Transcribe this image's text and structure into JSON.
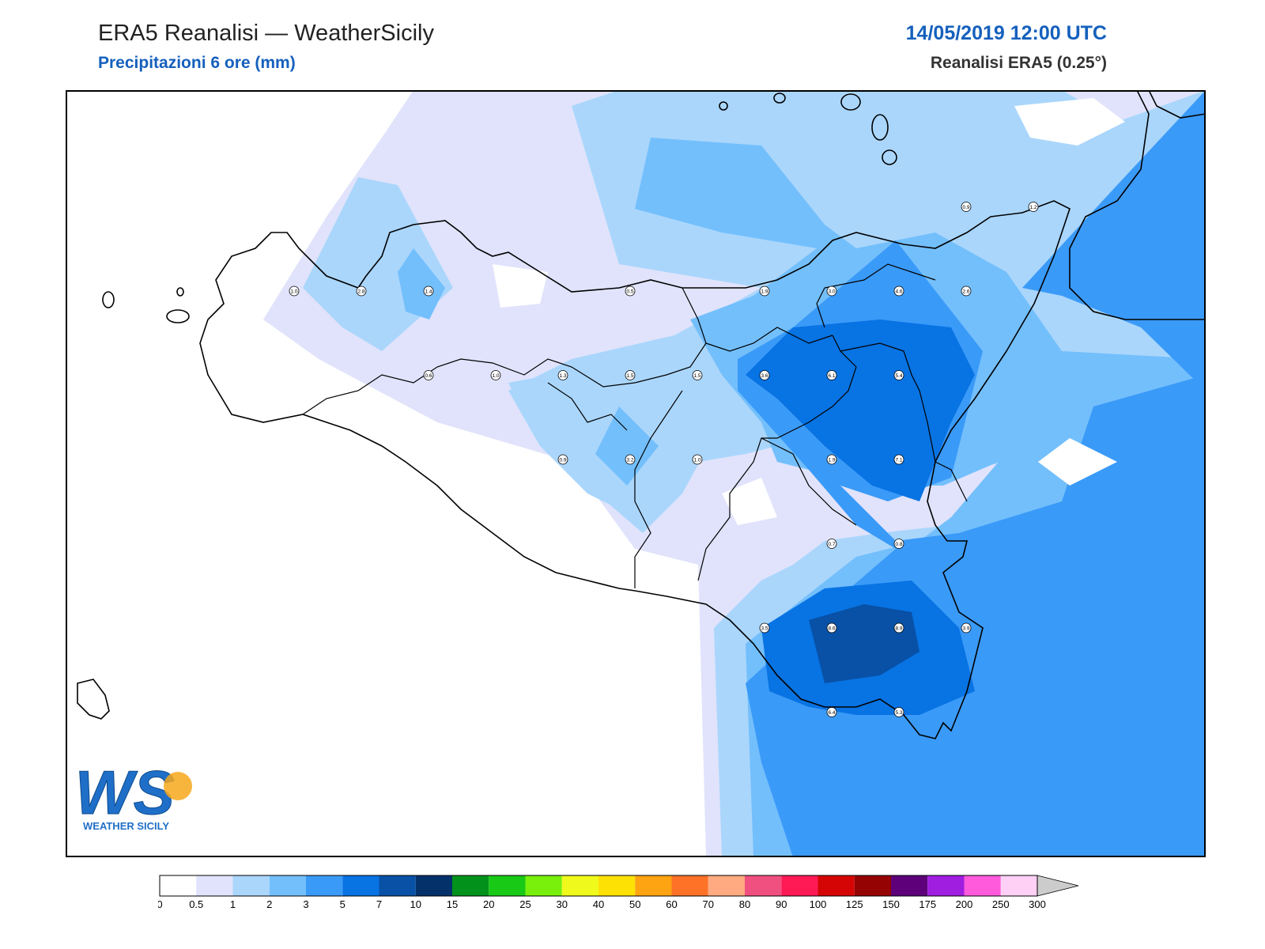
{
  "header": {
    "title": "ERA5 Reanalisi — WeatherSicily",
    "subtitle": "Precipitazioni 6 ore (mm)",
    "datetime": "14/05/2019 12:00 UTC",
    "model": "Reanalisi ERA5 (0.25°)"
  },
  "logo": {
    "letters": "WS",
    "caption": "WEATHER SICILY"
  },
  "stations": [
    {
      "label": "1.0",
      "lon": 12.6,
      "lat": 38.45
    },
    {
      "label": "2.8",
      "lon": 12.85,
      "lat": 38.45
    },
    {
      "label": "1.4",
      "lon": 13.1,
      "lat": 38.45
    },
    {
      "label": "0.5",
      "lon": 13.85,
      "lat": 38.45
    },
    {
      "label": "1.9",
      "lon": 14.35,
      "lat": 38.45
    },
    {
      "label": "3.0",
      "lon": 14.6,
      "lat": 38.45
    },
    {
      "label": "4.6",
      "lon": 14.85,
      "lat": 38.45
    },
    {
      "label": "2.6",
      "lon": 15.1,
      "lat": 38.45
    },
    {
      "label": "0.9",
      "lon": 15.1,
      "lat": 38.75
    },
    {
      "label": "1.2",
      "lon": 15.35,
      "lat": 38.75
    },
    {
      "label": "0.6",
      "lon": 13.1,
      "lat": 38.15
    },
    {
      "label": "1.0",
      "lon": 13.35,
      "lat": 38.15
    },
    {
      "label": "1.3",
      "lon": 13.6,
      "lat": 38.15
    },
    {
      "label": "1.5",
      "lon": 13.85,
      "lat": 38.15
    },
    {
      "label": "1.5",
      "lon": 14.1,
      "lat": 38.15
    },
    {
      "label": "3.6",
      "lon": 14.35,
      "lat": 38.15
    },
    {
      "label": "6.1",
      "lon": 14.6,
      "lat": 38.15
    },
    {
      "label": "5.4",
      "lon": 14.85,
      "lat": 38.15
    },
    {
      "label": "0.9",
      "lon": 13.6,
      "lat": 37.85
    },
    {
      "label": "3.2",
      "lon": 13.85,
      "lat": 37.85
    },
    {
      "label": "1.0",
      "lon": 14.1,
      "lat": 37.85
    },
    {
      "label": "1.9",
      "lon": 14.6,
      "lat": 37.85
    },
    {
      "label": "7.1",
      "lon": 14.85,
      "lat": 37.85
    },
    {
      "label": "0.7",
      "lon": 14.6,
      "lat": 37.55
    },
    {
      "label": "0.8",
      "lon": 14.85,
      "lat": 37.55
    },
    {
      "label": "3.5",
      "lon": 14.35,
      "lat": 37.25
    },
    {
      "label": "8.6",
      "lon": 14.6,
      "lat": 37.25
    },
    {
      "label": "8.9",
      "lon": 14.85,
      "lat": 37.25
    },
    {
      "label": "3.9",
      "lon": 15.1,
      "lat": 37.25
    },
    {
      "label": "6.4",
      "lon": 14.6,
      "lat": 36.95
    },
    {
      "label": "5.3",
      "lon": 14.85,
      "lat": 36.95
    }
  ],
  "colorbar": {
    "ticks": [
      "0",
      "0.5",
      "1",
      "2",
      "3",
      "5",
      "7",
      "10",
      "15",
      "20",
      "25",
      "30",
      "40",
      "50",
      "60",
      "70",
      "80",
      "90",
      "100",
      "125",
      "150",
      "175",
      "200",
      "250",
      "300"
    ],
    "colors": [
      "#ffffff",
      "#e0e3fb",
      "#aad6fc",
      "#73bffc",
      "#3a9af8",
      "#0873e3",
      "#0851a6",
      "#05316b",
      "#02921c",
      "#18c916",
      "#78f00c",
      "#f0f91c",
      "#fde105",
      "#fea311",
      "#fd7226",
      "#ffaa80",
      "#f05080",
      "#ff1a55",
      "#d60505",
      "#960303",
      "#5d007a",
      "#a01ee0",
      "#ff5adb",
      "#ffd0f5"
    ],
    "over_color": "#cccccc"
  }
}
